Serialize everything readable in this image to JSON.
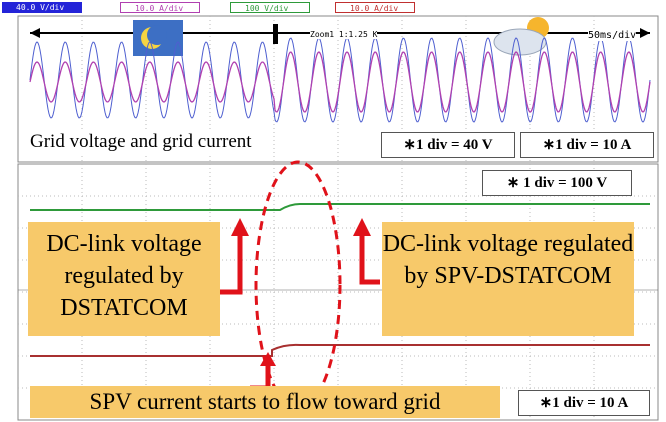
{
  "channels": [
    "40.0 V/div",
    "10.0 A/div",
    "100 V/div",
    "10.0 A/div"
  ],
  "zoom": "Zoom1 1:1.25 K",
  "timebase": "50ms/div",
  "top_panel": {
    "caption": "Grid voltage and grid current",
    "scales": [
      "∗1 div = 40 V",
      "∗1 div = 10 A"
    ]
  },
  "middle_scale": "∗ 1 div = 100 V",
  "annotations": {
    "left": "DC-link voltage regulated by DSTATCOM",
    "right": "DC-link voltage regulated by SPV-DSTATCOM",
    "bottom": "SPV current starts to flow toward grid"
  },
  "bottom_scale": "∗1 div = 10 A"
}
